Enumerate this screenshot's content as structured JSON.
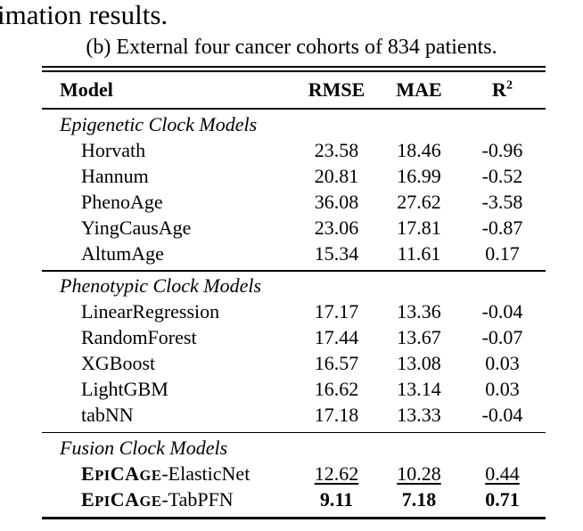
{
  "context": {
    "top_text": "imation results.",
    "caption": "(b) External four cancer cohorts of 834 patients."
  },
  "table": {
    "columns": [
      {
        "label": "Model"
      },
      {
        "label": "RMSE"
      },
      {
        "label": "MAE"
      },
      {
        "label": "R",
        "sup": "2"
      }
    ],
    "sections": [
      {
        "title": "Epigenetic Clock Models",
        "rows": [
          {
            "model": "Horvath",
            "values": [
              "23.58",
              "18.46",
              "-0.96"
            ],
            "emphasis": "none"
          },
          {
            "model": "Hannum",
            "values": [
              "20.81",
              "16.99",
              "-0.52"
            ],
            "emphasis": "none"
          },
          {
            "model": "PhenoAge",
            "values": [
              "36.08",
              "27.62",
              "-3.58"
            ],
            "emphasis": "none"
          },
          {
            "model": "YingCausAge",
            "values": [
              "23.06",
              "17.81",
              "-0.87"
            ],
            "emphasis": "none"
          },
          {
            "model": "AltumAge",
            "values": [
              "15.34",
              "11.61",
              "0.17"
            ],
            "emphasis": "none"
          }
        ]
      },
      {
        "title": "Phenotypic Clock Models",
        "rows": [
          {
            "model": "LinearRegression",
            "values": [
              "17.17",
              "13.36",
              "-0.04"
            ],
            "emphasis": "none"
          },
          {
            "model": "RandomForest",
            "values": [
              "17.44",
              "13.67",
              "-0.07"
            ],
            "emphasis": "none"
          },
          {
            "model": "XGBoost",
            "values": [
              "16.57",
              "13.08",
              "0.03"
            ],
            "emphasis": "none"
          },
          {
            "model": "LightGBM",
            "values": [
              "16.62",
              "13.14",
              "0.03"
            ],
            "emphasis": "none"
          },
          {
            "model": "tabNN",
            "values": [
              "17.18",
              "13.33",
              "-0.04"
            ],
            "emphasis": "none"
          }
        ]
      },
      {
        "title": "Fusion Clock Models",
        "rows": [
          {
            "model_brand": "EpiCAge",
            "model_suffix": "-ElasticNet",
            "values": [
              "12.62",
              "10.28",
              "0.44"
            ],
            "emphasis": "underline"
          },
          {
            "model_brand": "EpiCAge",
            "model_suffix": "-TabPFN",
            "values": [
              "9.11",
              "7.18",
              "0.71"
            ],
            "emphasis": "bold"
          }
        ]
      }
    ]
  }
}
